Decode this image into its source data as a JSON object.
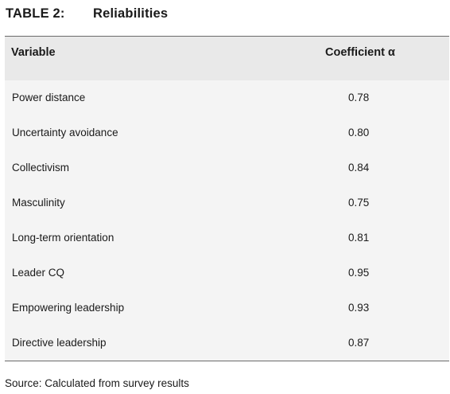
{
  "title": {
    "number": "TABLE 2:",
    "text": "Reliabilities"
  },
  "table": {
    "headers": {
      "variable": "Variable",
      "coefficient": "Coefficient α"
    },
    "rows": [
      {
        "variable": "Power distance",
        "value": "0.78"
      },
      {
        "variable": "Uncertainty avoidance",
        "value": "0.80"
      },
      {
        "variable": "Collectivism",
        "value": "0.84"
      },
      {
        "variable": "Masculinity",
        "value": "0.75"
      },
      {
        "variable": "Long-term orientation",
        "value": "0.81"
      },
      {
        "variable": "Leader CQ",
        "value": "0.95"
      },
      {
        "variable": "Empowering leadership",
        "value": "0.93"
      },
      {
        "variable": "Directive leadership",
        "value": "0.87"
      }
    ]
  },
  "source": "Source: Calculated from survey results"
}
